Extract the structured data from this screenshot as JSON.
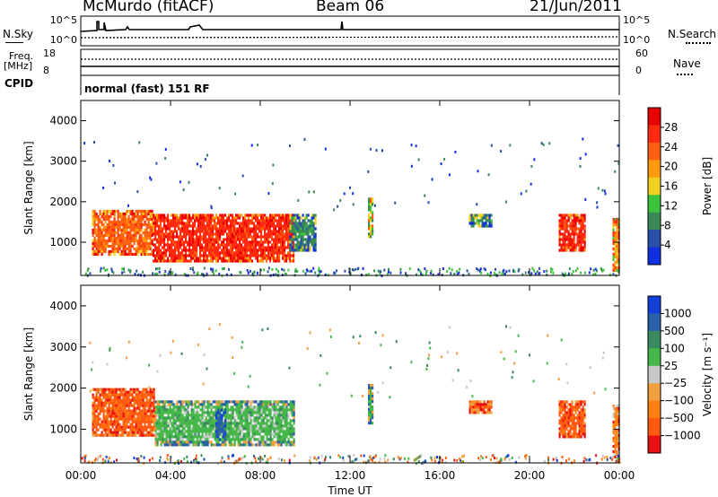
{
  "header": {
    "station": "McMurdo (fitACF)",
    "beam": "Beam 06",
    "date": "21/Jun/2011"
  },
  "side_labels": {
    "nsky": "N.Sky",
    "nsearch": "N.Search",
    "freq": "Freq.",
    "freq_unit": "[MHz]",
    "cpid": "CPID",
    "nave": "Nave"
  },
  "cpid_text": "normal (fast) 151 RF",
  "top_panel": {
    "left_ticks": [
      "10^5",
      "10^0"
    ],
    "right_ticks": [
      "10^5",
      "10^0"
    ],
    "freq_ticks": [
      "18",
      "8"
    ],
    "nave_ticks": [
      "60",
      "0"
    ]
  },
  "colors": {
    "power_scale": [
      "#1030e0",
      "#2a4fa8",
      "#3a8a58",
      "#3cc43c",
      "#f0d020",
      "#ff9a10",
      "#ff6010",
      "#ff2a10",
      "#e80000"
    ],
    "velocity_scale": [
      "#1040d8",
      "#2a60a8",
      "#3a8a60",
      "#46b84a",
      "#c8c8c8",
      "#f0a040",
      "#ff8010",
      "#ff5a10",
      "#e81010"
    ]
  },
  "chart_data": [
    {
      "type": "heatmap",
      "ylabel": "Slant Range [km]",
      "ylim": [
        180,
        4500
      ],
      "y_ticks": [
        "1000",
        "2000",
        "3000",
        "4000"
      ],
      "x_ticks": [
        "00:00",
        "04:00",
        "08:00",
        "12:00",
        "16:00",
        "20:00",
        "00:00"
      ],
      "xlim_hours": [
        0,
        24
      ],
      "colorbar": {
        "label": "Power [dB]",
        "range": [
          0,
          32
        ],
        "tick_labels": [
          "4",
          "8",
          "12",
          "16",
          "20",
          "24",
          "28"
        ]
      },
      "regions": [
        {
          "t": [
            0.5,
            3.2
          ],
          "r": [
            700,
            1800
          ],
          "v": 24
        },
        {
          "t": [
            3.2,
            9.5
          ],
          "r": [
            500,
            1700
          ],
          "v": 27
        },
        {
          "t": [
            9.3,
            10.5
          ],
          "r": [
            800,
            1700
          ],
          "v": 8
        },
        {
          "t": [
            12.8,
            13.0
          ],
          "r": [
            1100,
            2100
          ],
          "v": 15
        },
        {
          "t": [
            17.3,
            18.3
          ],
          "r": [
            1400,
            1700
          ],
          "v": 10
        },
        {
          "t": [
            21.3,
            22.5
          ],
          "r": [
            800,
            1700
          ],
          "v": 26
        },
        {
          "t": [
            23.7,
            24.0
          ],
          "r": [
            300,
            1600
          ],
          "v": 18
        }
      ]
    },
    {
      "type": "heatmap",
      "ylabel": "Slant Range [km]",
      "ylim": [
        180,
        4500
      ],
      "y_ticks": [
        "1000",
        "2000",
        "3000",
        "4000"
      ],
      "x_ticks": [
        "00:00",
        "04:00",
        "08:00",
        "12:00",
        "16:00",
        "20:00",
        "00:00"
      ],
      "xlabel": "Time UT",
      "colorbar": {
        "label": "Velocity [m s⁻¹]",
        "tick_labels": [
          "1000",
          "500",
          "100",
          "25",
          "−25",
          "−100",
          "−500",
          "−1000"
        ]
      },
      "regions": [
        {
          "t": [
            0.5,
            3.3
          ],
          "r": [
            800,
            2000
          ],
          "v": -300
        },
        {
          "t": [
            3.3,
            9.5
          ],
          "r": [
            600,
            1700
          ],
          "v": 60
        },
        {
          "t": [
            6.0,
            6.5
          ],
          "r": [
            700,
            1500
          ],
          "v": 700
        },
        {
          "t": [
            12.8,
            13.0
          ],
          "r": [
            1100,
            2100
          ],
          "v": 40
        },
        {
          "t": [
            17.3,
            18.3
          ],
          "r": [
            1400,
            1700
          ],
          "v": -300
        },
        {
          "t": [
            21.3,
            22.5
          ],
          "r": [
            800,
            1700
          ],
          "v": -300
        },
        {
          "t": [
            23.7,
            24.0
          ],
          "r": [
            300,
            1600
          ],
          "v": -100
        }
      ]
    }
  ]
}
